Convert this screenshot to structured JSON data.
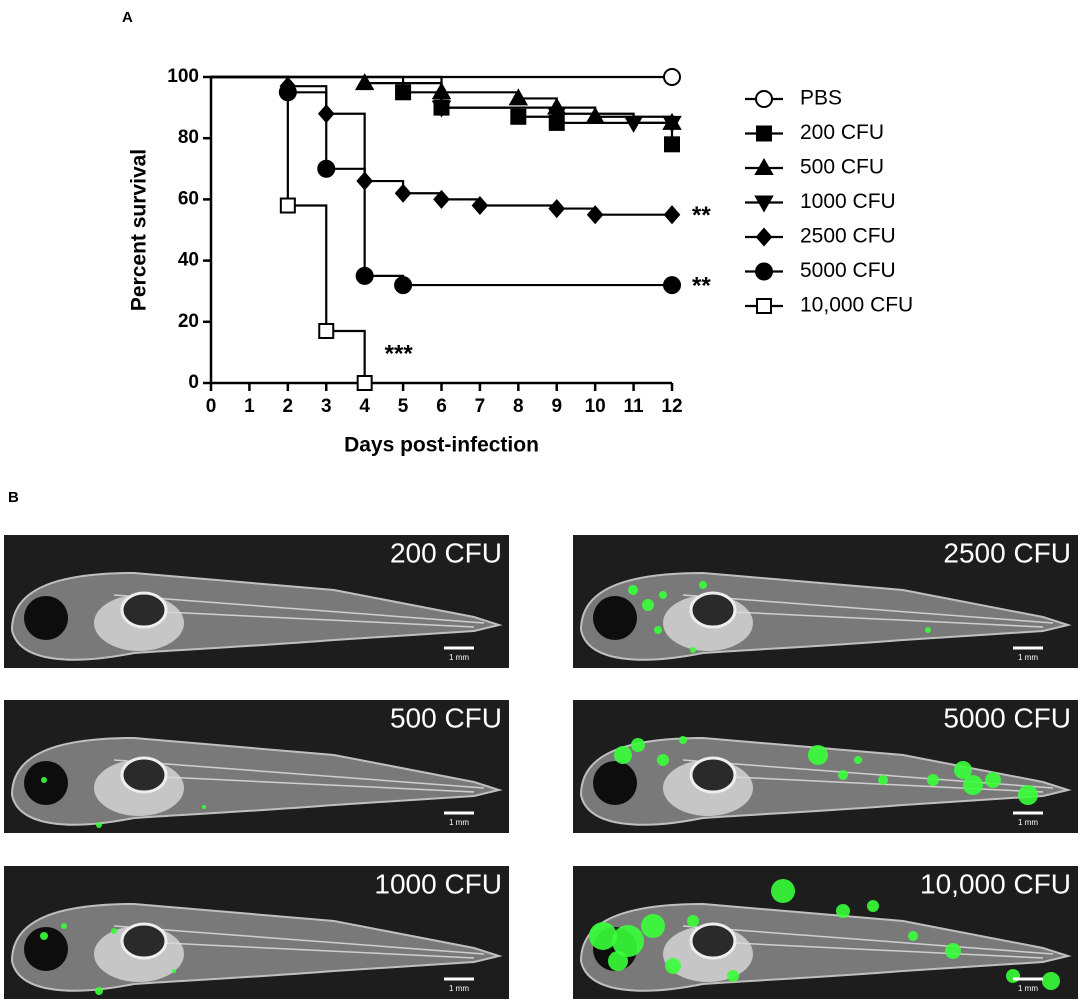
{
  "panel_labels": [
    "A",
    "B"
  ],
  "chart_data": {
    "type": "line",
    "step": true,
    "xlabel": "Days post-infection",
    "ylabel": "Percent survival",
    "xlim": [
      0,
      12
    ],
    "ylim": [
      0,
      100
    ],
    "xticks": [
      0,
      1,
      2,
      3,
      4,
      5,
      6,
      7,
      8,
      9,
      10,
      11,
      12
    ],
    "yticks": [
      0,
      20,
      40,
      60,
      80,
      100
    ],
    "legend": "right",
    "series": [
      {
        "name": "PBS",
        "color": "#000000",
        "marker": "circle",
        "filled": false,
        "x": [
          0,
          12
        ],
        "values": [
          100,
          100
        ]
      },
      {
        "name": "200 CFU",
        "color": "#000000",
        "marker": "square",
        "filled": true,
        "x": [
          0,
          5,
          6,
          8,
          9,
          12
        ],
        "values": [
          100,
          95,
          90,
          87,
          85,
          78
        ]
      },
      {
        "name": "500 CFU",
        "color": "#000000",
        "marker": "triangle-up",
        "filled": true,
        "x": [
          0,
          4,
          6,
          8,
          9,
          10,
          12
        ],
        "values": [
          100,
          98,
          95,
          93,
          90,
          87,
          85
        ]
      },
      {
        "name": "1000 CFU",
        "color": "#000000",
        "marker": "triangle-down",
        "filled": true,
        "x": [
          0,
          6,
          9,
          11,
          12
        ],
        "values": [
          100,
          90,
          88,
          85,
          85
        ]
      },
      {
        "name": "2500 CFU",
        "color": "#000000",
        "marker": "diamond",
        "filled": true,
        "x": [
          0,
          2,
          3,
          4,
          5,
          6,
          7,
          9,
          10,
          12
        ],
        "values": [
          100,
          97,
          88,
          66,
          62,
          60,
          58,
          57,
          55,
          55
        ],
        "annotation": "**"
      },
      {
        "name": "5000 CFU",
        "color": "#000000",
        "marker": "circle",
        "filled": true,
        "x": [
          0,
          2,
          3,
          4,
          5,
          12
        ],
        "values": [
          100,
          95,
          70,
          35,
          32,
          32
        ],
        "annotation": "**"
      },
      {
        "name": "10,000 CFU",
        "color": "#000000",
        "marker": "square",
        "filled": false,
        "x": [
          0,
          2,
          3,
          4
        ],
        "values": [
          100,
          58,
          17,
          0
        ],
        "annotation": "***"
      }
    ]
  },
  "images": [
    {
      "label": "200 CFU",
      "scale": "1 mm"
    },
    {
      "label": "500 CFU",
      "scale": "1 mm"
    },
    {
      "label": "1000 CFU",
      "scale": "1 mm"
    },
    {
      "label": "2500 CFU",
      "scale": "1 mm"
    },
    {
      "label": "5000 CFU",
      "scale": "1 mm"
    },
    {
      "label": "10,000 CFU",
      "scale": "1 mm"
    }
  ]
}
